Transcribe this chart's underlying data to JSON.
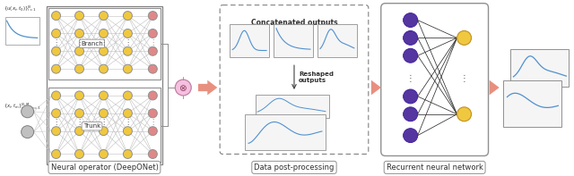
{
  "bg_color": "#ffffff",
  "label_deeponet": "Neural operator (DeepONet)",
  "label_postproc": "Data post-processing",
  "label_rnn": "Recurrent neural network",
  "label_branch": "Branch",
  "label_trunk": "Trunk",
  "label_concat": "Concatenated outputs",
  "label_reshaped": "Reshaped\noutputs",
  "node_color_yellow": "#F0C840",
  "node_color_pink": "#E08888",
  "node_color_purple": "#5535A0",
  "node_color_gray": "#C0C0C0",
  "arrow_color": "#E89080",
  "text_color": "#303030",
  "section_label_fontsize": 6,
  "fig_width": 6.4,
  "fig_height": 1.97
}
